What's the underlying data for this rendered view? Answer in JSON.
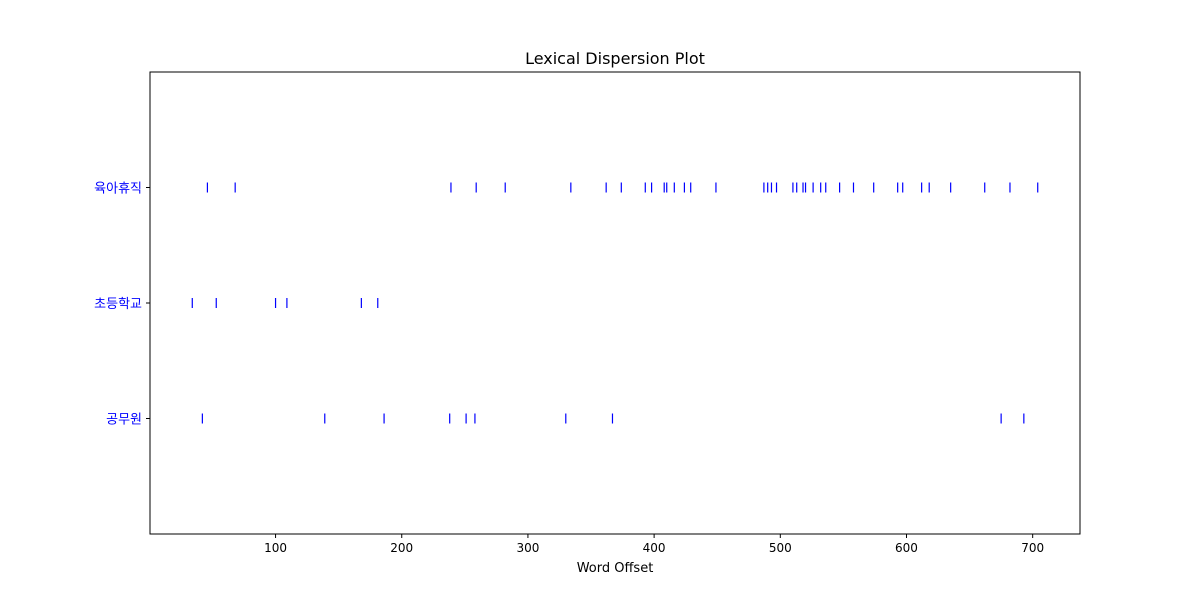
{
  "chart_data": {
    "type": "scatter",
    "title": "Lexical Dispersion Plot",
    "xlabel": "Word Offset",
    "ylabel": "",
    "xlim": [
      0.5,
      737.5
    ],
    "xticks": [
      100,
      200,
      300,
      400,
      500,
      600,
      700
    ],
    "grid": false,
    "marker": "|",
    "color": "#0000ff",
    "series": [
      {
        "name": "육아휴직",
        "values": [
          46,
          68,
          239,
          259,
          282,
          334,
          362,
          374,
          393,
          398,
          408,
          410,
          416,
          424,
          429,
          449,
          487,
          490,
          493,
          497,
          510,
          513,
          518,
          520,
          526,
          532,
          536,
          547,
          558,
          574,
          593,
          597,
          612,
          618,
          635,
          662,
          682,
          704
        ]
      },
      {
        "name": "초등학교",
        "values": [
          34,
          53,
          100,
          109,
          168,
          181
        ]
      },
      {
        "name": "공무원",
        "values": [
          42,
          139,
          186,
          238,
          251,
          258,
          330,
          367,
          675,
          693
        ]
      }
    ]
  }
}
